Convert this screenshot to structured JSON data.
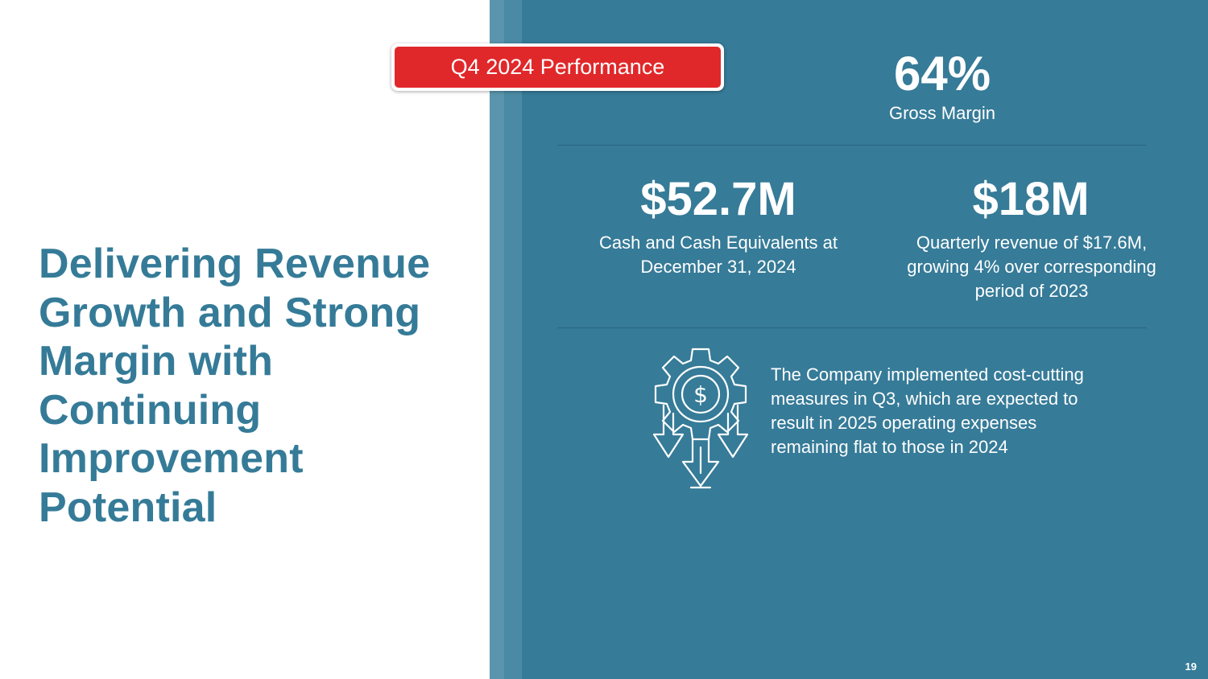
{
  "slide": {
    "headline": "Delivering Revenue Growth and Strong Margin with Continuing Improvement Potential",
    "tag_label": "Q4 2024 Performance",
    "gross_margin": {
      "value": "64%",
      "label": "Gross Margin"
    },
    "cash": {
      "value": "$52.7M",
      "label": "Cash and Cash Equivalents at December 31, 2024"
    },
    "revenue": {
      "value": "$18M",
      "label": "Quarterly revenue of $17.6M, growing 4% over corresponding period of 2023"
    },
    "cost_note": "The Company implemented cost-cutting measures in Q3, which are expected to result in 2025 operating expenses remaining flat to those in 2024",
    "icon": "gear-dollar-down-arrows-icon",
    "page_number": "19"
  },
  "colors": {
    "accent_blue": "#357b98",
    "panel_blue": "#367b98",
    "tag_red": "#e0282a"
  }
}
